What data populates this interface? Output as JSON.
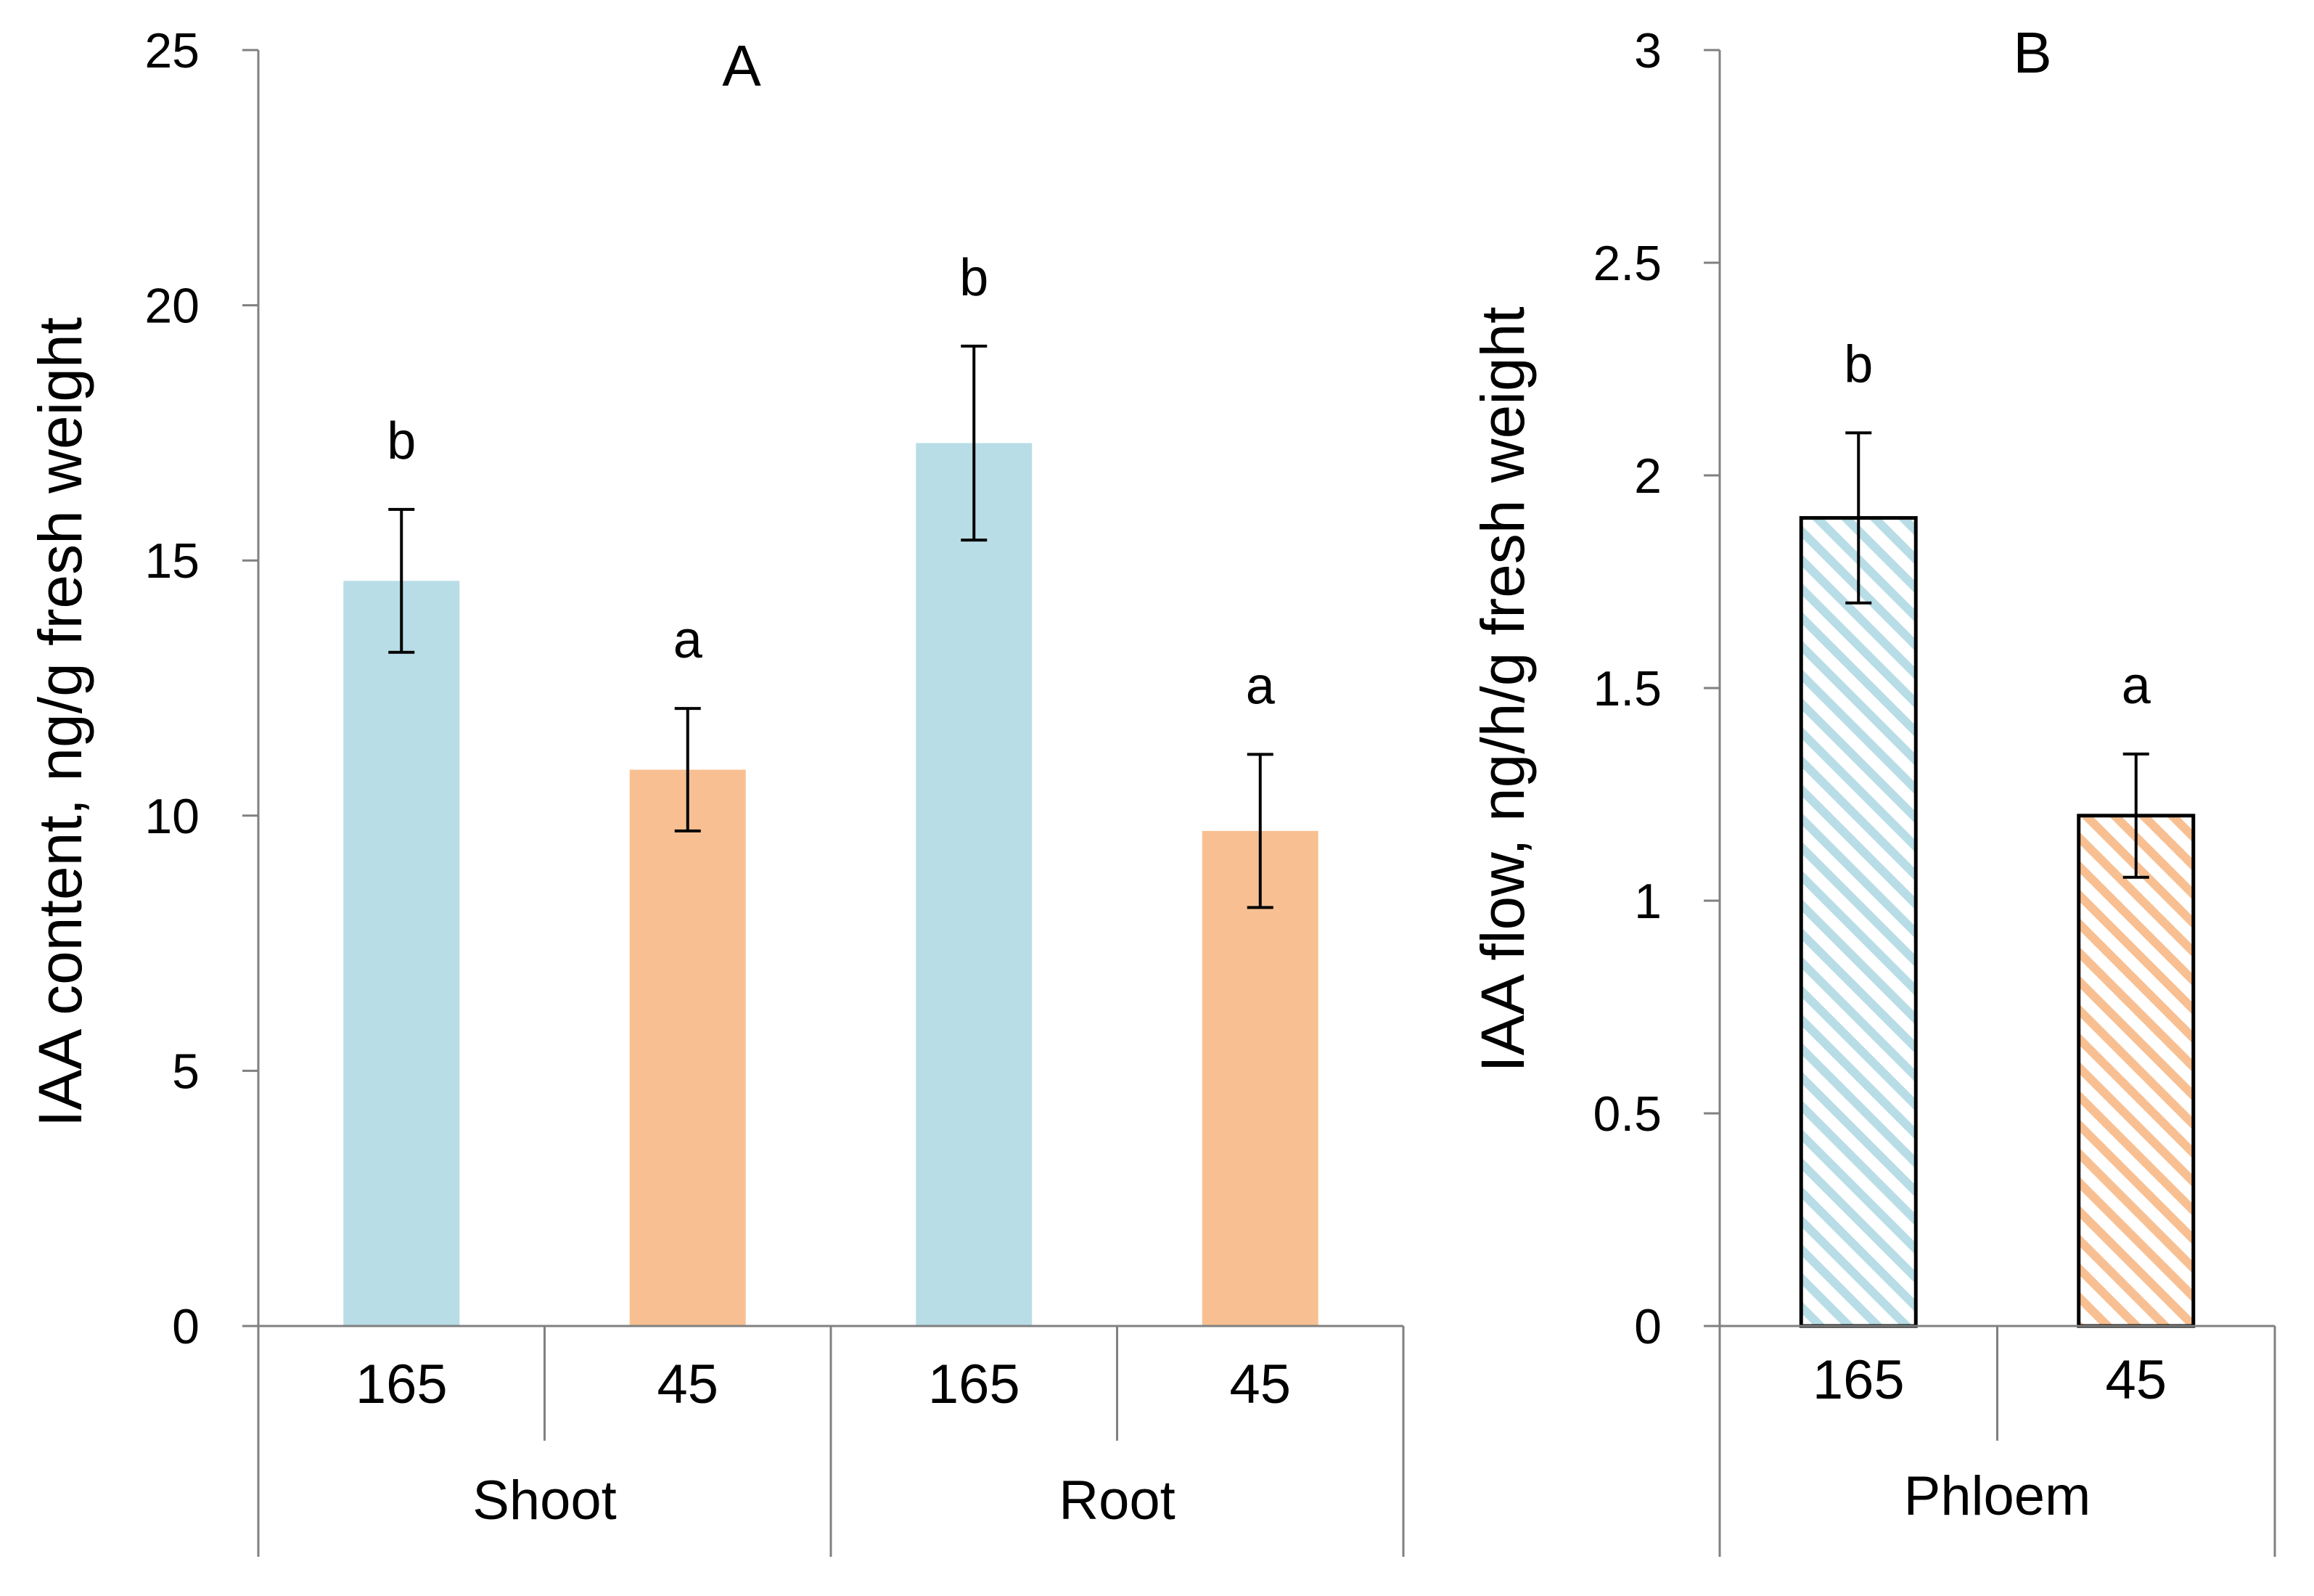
{
  "chart_data": [
    {
      "type": "bar",
      "title": "A",
      "ylabel": "IAA content, ng/g fresh weight",
      "xlabel": "",
      "ylim": [
        0,
        25
      ],
      "yticks": [
        0,
        5,
        10,
        15,
        20,
        25
      ],
      "groups": [
        {
          "label": "Shoot",
          "categories": [
            "165",
            "45"
          ]
        },
        {
          "label": "Root",
          "categories": [
            "165",
            "45"
          ]
        }
      ],
      "bars": [
        {
          "group": "Shoot",
          "category": "165",
          "value": 14.6,
          "error": 1.4,
          "sig": "b",
          "color": "#b8dde6",
          "pattern": "solid"
        },
        {
          "group": "Shoot",
          "category": "45",
          "value": 10.9,
          "error": 1.2,
          "sig": "a",
          "color": "#f8c092",
          "pattern": "solid"
        },
        {
          "group": "Root",
          "category": "165",
          "value": 17.3,
          "error": 1.9,
          "sig": "b",
          "color": "#b8dde6",
          "pattern": "solid"
        },
        {
          "group": "Root",
          "category": "45",
          "value": 9.7,
          "error": 1.5,
          "sig": "a",
          "color": "#f8c092",
          "pattern": "solid"
        }
      ],
      "grid": false
    },
    {
      "type": "bar",
      "title": "B",
      "ylabel": "IAA flow, ng/h/g fresh weight",
      "xlabel": "",
      "ylim": [
        0,
        3
      ],
      "yticks": [
        0,
        0.5,
        1,
        1.5,
        2,
        2.5,
        3
      ],
      "groups": [
        {
          "label": "Phloem",
          "categories": [
            "165",
            "45"
          ]
        }
      ],
      "bars": [
        {
          "group": "Phloem",
          "category": "165",
          "value": 1.9,
          "error": 0.2,
          "sig": "b",
          "color": "#b8dde6",
          "pattern": "hatched"
        },
        {
          "group": "Phloem",
          "category": "45",
          "value": 1.2,
          "error": 0.145,
          "sig": "a",
          "color": "#f8c092",
          "pattern": "hatched"
        }
      ],
      "grid": false
    }
  ]
}
